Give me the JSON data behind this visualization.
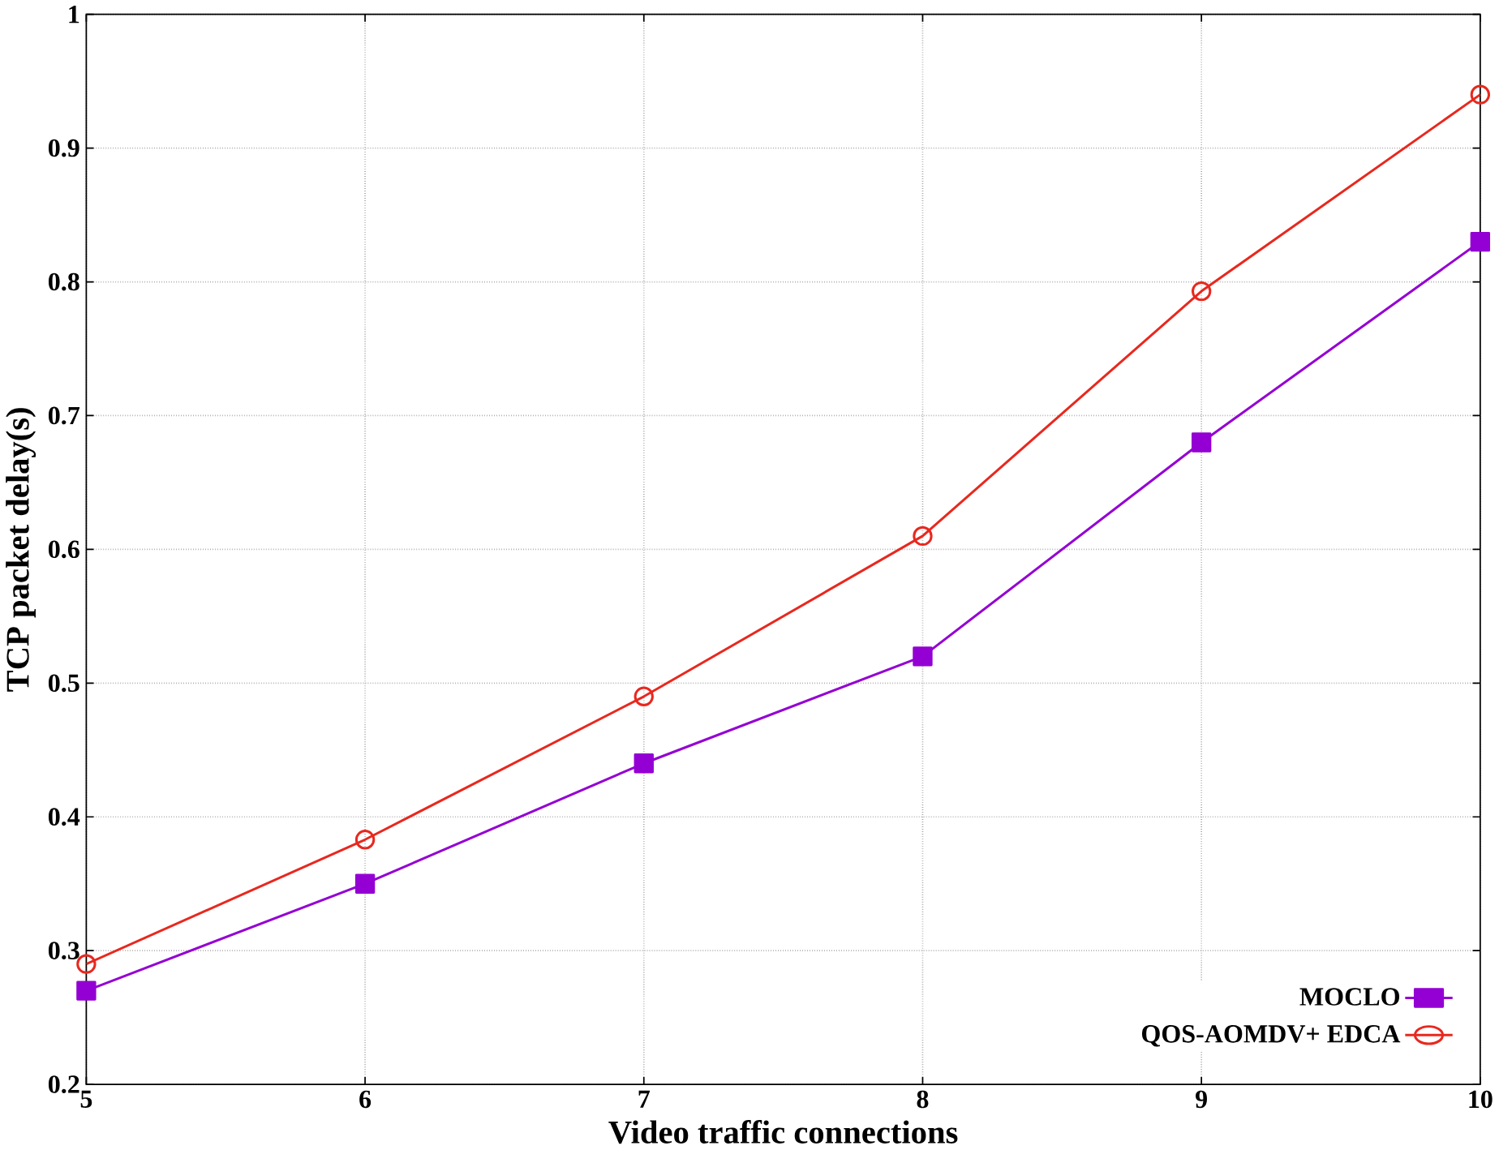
{
  "chart_data": {
    "type": "line",
    "xlabel": "Video traffic connections",
    "ylabel": "TCP packet delay(s)",
    "x": [
      5,
      6,
      7,
      8,
      9,
      10
    ],
    "series": [
      {
        "name": "MOCLO",
        "color": "#9400d3",
        "marker": "square",
        "values": [
          0.27,
          0.35,
          0.44,
          0.52,
          0.68,
          0.83
        ]
      },
      {
        "name": "QOS-AOMDV+ EDCA",
        "color": "#e8281e",
        "marker": "circle",
        "values": [
          0.29,
          0.383,
          0.49,
          0.61,
          0.793,
          0.94
        ]
      }
    ],
    "xlim": [
      5,
      10
    ],
    "xticks": [
      5,
      6,
      7,
      8,
      9,
      10
    ],
    "ylim": [
      0.2,
      1
    ],
    "yticks": [
      0.2,
      0.3,
      0.4,
      0.5,
      0.6,
      0.7,
      0.8,
      0.9,
      1
    ],
    "grid": true,
    "legend": "bottom right",
    "line_style": "solid"
  }
}
